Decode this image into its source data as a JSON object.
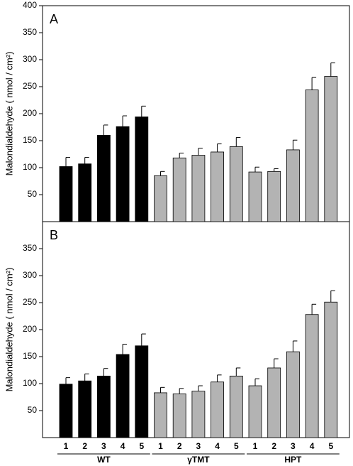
{
  "chart_data": [
    {
      "type": "bar",
      "panel": "A",
      "ylabel": "Malondialdehyde ( nmol / cm²)",
      "ylim": [
        0,
        400
      ],
      "yticks": [
        50,
        100,
        150,
        200,
        250,
        300,
        350,
        400
      ],
      "series": [
        {
          "color": "#000000",
          "values": [
            102,
            107,
            160,
            176,
            194
          ],
          "errors": [
            17,
            12,
            19,
            20,
            20
          ]
        },
        {
          "color": "#b3b3b3",
          "values": [
            85,
            118,
            123,
            129,
            139
          ],
          "errors": [
            8,
            9,
            13,
            15,
            17
          ]
        },
        {
          "color": "#b3b3b3",
          "values": [
            92,
            93,
            133,
            244,
            269
          ],
          "errors": [
            9,
            5,
            18,
            23,
            25
          ]
        }
      ]
    },
    {
      "type": "bar",
      "panel": "B",
      "ylabel": "Malondialdehyde ( nmol / cm²)",
      "ylim": [
        0,
        400
      ],
      "yticks": [
        50,
        100,
        150,
        200,
        250,
        300,
        350
      ],
      "categories": [
        "1",
        "2",
        "3",
        "4",
        "5"
      ],
      "series": [
        {
          "name": "WT",
          "color": "#000000",
          "values": [
            99,
            105,
            114,
            154,
            170
          ],
          "errors": [
            12,
            13,
            14,
            19,
            22
          ]
        },
        {
          "name": "γTMT",
          "color": "#b3b3b3",
          "values": [
            83,
            81,
            86,
            103,
            114
          ],
          "errors": [
            10,
            10,
            10,
            13,
            15
          ]
        },
        {
          "name": "HPT",
          "color": "#b3b3b3",
          "values": [
            96,
            129,
            159,
            228,
            251
          ],
          "errors": [
            13,
            17,
            20,
            19,
            21
          ]
        }
      ]
    }
  ]
}
